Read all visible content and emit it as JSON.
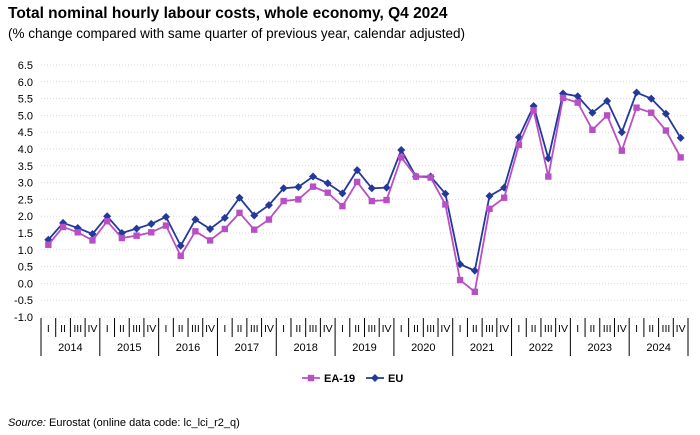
{
  "title": "Total nominal hourly labour costs, whole economy, Q4 2024",
  "subtitle": "(% change compared with same quarter of previous year, calendar adjusted)",
  "source": {
    "label": "Source:",
    "text": "Eurostat (online data code: lc_lci_r2_q)"
  },
  "colors": {
    "EA-19": "#b94fc4",
    "EU": "#23399b",
    "grid": "#d9d9d9",
    "axis": "#000000"
  },
  "chart_data": {
    "type": "line",
    "quarters": [
      "I",
      "II",
      "III",
      "IV"
    ],
    "years": [
      "2014",
      "2015",
      "2016",
      "2017",
      "2018",
      "2019",
      "2020",
      "2021",
      "2022",
      "2023",
      "2024"
    ],
    "ylim": [
      -1.0,
      6.5
    ],
    "yticks": [
      "-1.0",
      "-0.5",
      "0.0",
      "0.5",
      "1.0",
      "1.5",
      "2.0",
      "2.5",
      "3.0",
      "3.5",
      "4.0",
      "4.5",
      "5.0",
      "5.5",
      "6.0",
      "6.5"
    ],
    "grid": true,
    "legend_position": "bottom",
    "series": [
      {
        "name": "EA-19",
        "color": "#b94fc4",
        "marker": "square",
        "values": [
          1.15,
          1.68,
          1.52,
          1.28,
          1.85,
          1.35,
          1.42,
          1.52,
          1.72,
          0.82,
          1.55,
          1.28,
          1.62,
          2.1,
          1.6,
          1.9,
          2.45,
          2.5,
          2.88,
          2.7,
          2.3,
          3.02,
          2.45,
          2.48,
          3.75,
          3.18,
          3.15,
          2.35,
          0.1,
          -0.25,
          2.22,
          2.55,
          4.12,
          5.15,
          3.18,
          5.52,
          5.38,
          4.57,
          5.0,
          3.95,
          5.23,
          5.08,
          4.55,
          3.75
        ]
      },
      {
        "name": "EU",
        "color": "#23399b",
        "marker": "diamond",
        "values": [
          1.3,
          1.8,
          1.65,
          1.47,
          2.0,
          1.5,
          1.63,
          1.77,
          1.98,
          1.12,
          1.9,
          1.62,
          1.95,
          2.55,
          2.02,
          2.33,
          2.83,
          2.87,
          3.18,
          2.98,
          2.68,
          3.37,
          2.83,
          2.85,
          3.97,
          3.18,
          3.18,
          2.67,
          0.57,
          0.38,
          2.6,
          2.85,
          4.35,
          5.28,
          3.72,
          5.65,
          5.57,
          5.08,
          5.43,
          4.5,
          5.68,
          5.5,
          5.05,
          4.33
        ]
      }
    ]
  }
}
